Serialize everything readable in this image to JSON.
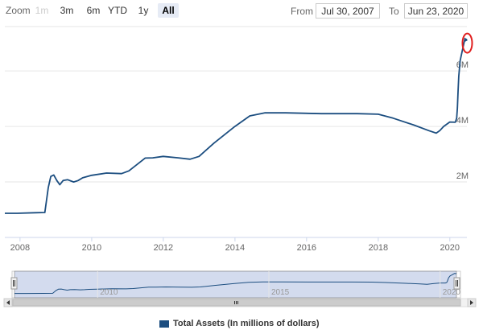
{
  "toolbar": {
    "zoom_label": "Zoom",
    "buttons": [
      {
        "label": "1m",
        "state": "disabled"
      },
      {
        "label": "3m",
        "state": "normal"
      },
      {
        "label": "6m",
        "state": "normal"
      },
      {
        "label": "YTD",
        "state": "normal"
      },
      {
        "label": "1y",
        "state": "normal"
      },
      {
        "label": "All",
        "state": "active"
      }
    ],
    "from_label": "From",
    "from_value": "Jul 30, 2007",
    "to_label": "To",
    "to_value": "Jun 23, 2020"
  },
  "colors": {
    "series": "#1c4e80",
    "highlight": "#e02020",
    "navigator_fill": "#c8d2ea"
  },
  "chart_data": {
    "type": "line",
    "title": "",
    "xlabel": "",
    "ylabel": "",
    "x_ticks": [
      "2008",
      "2010",
      "2012",
      "2014",
      "2016",
      "2018",
      "2020"
    ],
    "y_ticks": [
      "2M",
      "4M",
      "6M"
    ],
    "navigator_ticks": [
      "2010",
      "2015",
      "2020"
    ],
    "xlim": [
      "2007-07-30",
      "2020-06-23"
    ],
    "ylim": [
      0,
      7.6
    ],
    "y_unit": "millions of millions of dollars (M)",
    "legend_position": "bottom-center",
    "grid": "horizontal",
    "highlight_note": "red ellipse around latest value",
    "series": [
      {
        "name": "Total Assets (In millions of dollars)",
        "points": [
          [
            "2007-07-30",
            0.87
          ],
          [
            "2007-12-01",
            0.87
          ],
          [
            "2008-06-01",
            0.89
          ],
          [
            "2008-09-10",
            0.9
          ],
          [
            "2008-10-15",
            1.8
          ],
          [
            "2008-11-10",
            2.2
          ],
          [
            "2008-12-10",
            2.25
          ],
          [
            "2009-01-10",
            2.05
          ],
          [
            "2009-02-10",
            1.9
          ],
          [
            "2009-03-15",
            2.05
          ],
          [
            "2009-05-01",
            2.08
          ],
          [
            "2009-07-01",
            2.0
          ],
          [
            "2009-08-15",
            2.05
          ],
          [
            "2009-10-01",
            2.15
          ],
          [
            "2010-01-01",
            2.24
          ],
          [
            "2010-06-01",
            2.32
          ],
          [
            "2010-11-01",
            2.3
          ],
          [
            "2011-01-15",
            2.4
          ],
          [
            "2011-06-30",
            2.86
          ],
          [
            "2011-09-15",
            2.87
          ],
          [
            "2011-12-31",
            2.92
          ],
          [
            "2012-06-01",
            2.87
          ],
          [
            "2012-09-30",
            2.82
          ],
          [
            "2012-12-31",
            2.92
          ],
          [
            "2013-06-01",
            3.4
          ],
          [
            "2013-12-31",
            4.0
          ],
          [
            "2014-06-01",
            4.38
          ],
          [
            "2014-10-31",
            4.49
          ],
          [
            "2015-06-01",
            4.49
          ],
          [
            "2016-06-01",
            4.46
          ],
          [
            "2017-06-01",
            4.46
          ],
          [
            "2017-12-31",
            4.44
          ],
          [
            "2018-06-01",
            4.3
          ],
          [
            "2018-12-31",
            4.05
          ],
          [
            "2019-06-01",
            3.85
          ],
          [
            "2019-08-15",
            3.76
          ],
          [
            "2019-09-20",
            3.85
          ],
          [
            "2019-10-30",
            4.0
          ],
          [
            "2019-12-31",
            4.16
          ],
          [
            "2020-02-26",
            4.15
          ],
          [
            "2020-03-11",
            4.3
          ],
          [
            "2020-03-18",
            4.67
          ],
          [
            "2020-03-25",
            5.25
          ],
          [
            "2020-04-01",
            5.81
          ],
          [
            "2020-04-15",
            6.37
          ],
          [
            "2020-05-06",
            6.72
          ],
          [
            "2020-06-03",
            7.17
          ],
          [
            "2020-06-10",
            7.09
          ],
          [
            "2020-06-17",
            7.14
          ],
          [
            "2020-06-23",
            7.09
          ]
        ]
      }
    ]
  }
}
